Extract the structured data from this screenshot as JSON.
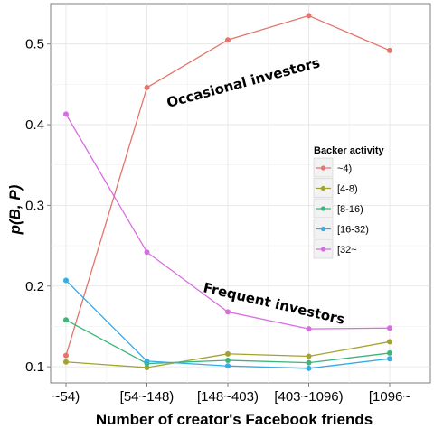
{
  "chart_data": {
    "type": "line",
    "title": "",
    "xlabel": "Number of creator's Facebook friends",
    "ylabel": "p(B, P)",
    "categories": [
      "~54)",
      "[54~148)",
      "[148~403)",
      "[403~1096)",
      "[1096~"
    ],
    "ylim": [
      0.08,
      0.55
    ],
    "yticks": [
      0.1,
      0.2,
      0.3,
      0.4,
      0.5
    ],
    "ytick_labels": [
      "0.1",
      "0.2",
      "0.3",
      "0.4",
      "0.5"
    ],
    "grid": true,
    "legend": {
      "title": "Backer activity",
      "placement": "right"
    },
    "series": [
      {
        "name": "~4)",
        "color": "#E5746B",
        "values": [
          0.114,
          0.446,
          0.505,
          0.535,
          0.492
        ]
      },
      {
        "name": "[4-8)",
        "color": "#A3A22E",
        "values": [
          0.106,
          0.099,
          0.116,
          0.113,
          0.131
        ]
      },
      {
        "name": "[8-16)",
        "color": "#3BB57A",
        "values": [
          0.158,
          0.104,
          0.108,
          0.105,
          0.117
        ]
      },
      {
        "name": "[16-32)",
        "color": "#35ACE6",
        "values": [
          0.207,
          0.107,
          0.101,
          0.098,
          0.11
        ]
      },
      {
        "name": "[32~",
        "color": "#D96CE2",
        "values": [
          0.413,
          0.242,
          0.168,
          0.147,
          0.148
        ]
      }
    ],
    "annotations": [
      {
        "text": "Occasional investors"
      },
      {
        "text": "Frequent investors"
      }
    ]
  }
}
